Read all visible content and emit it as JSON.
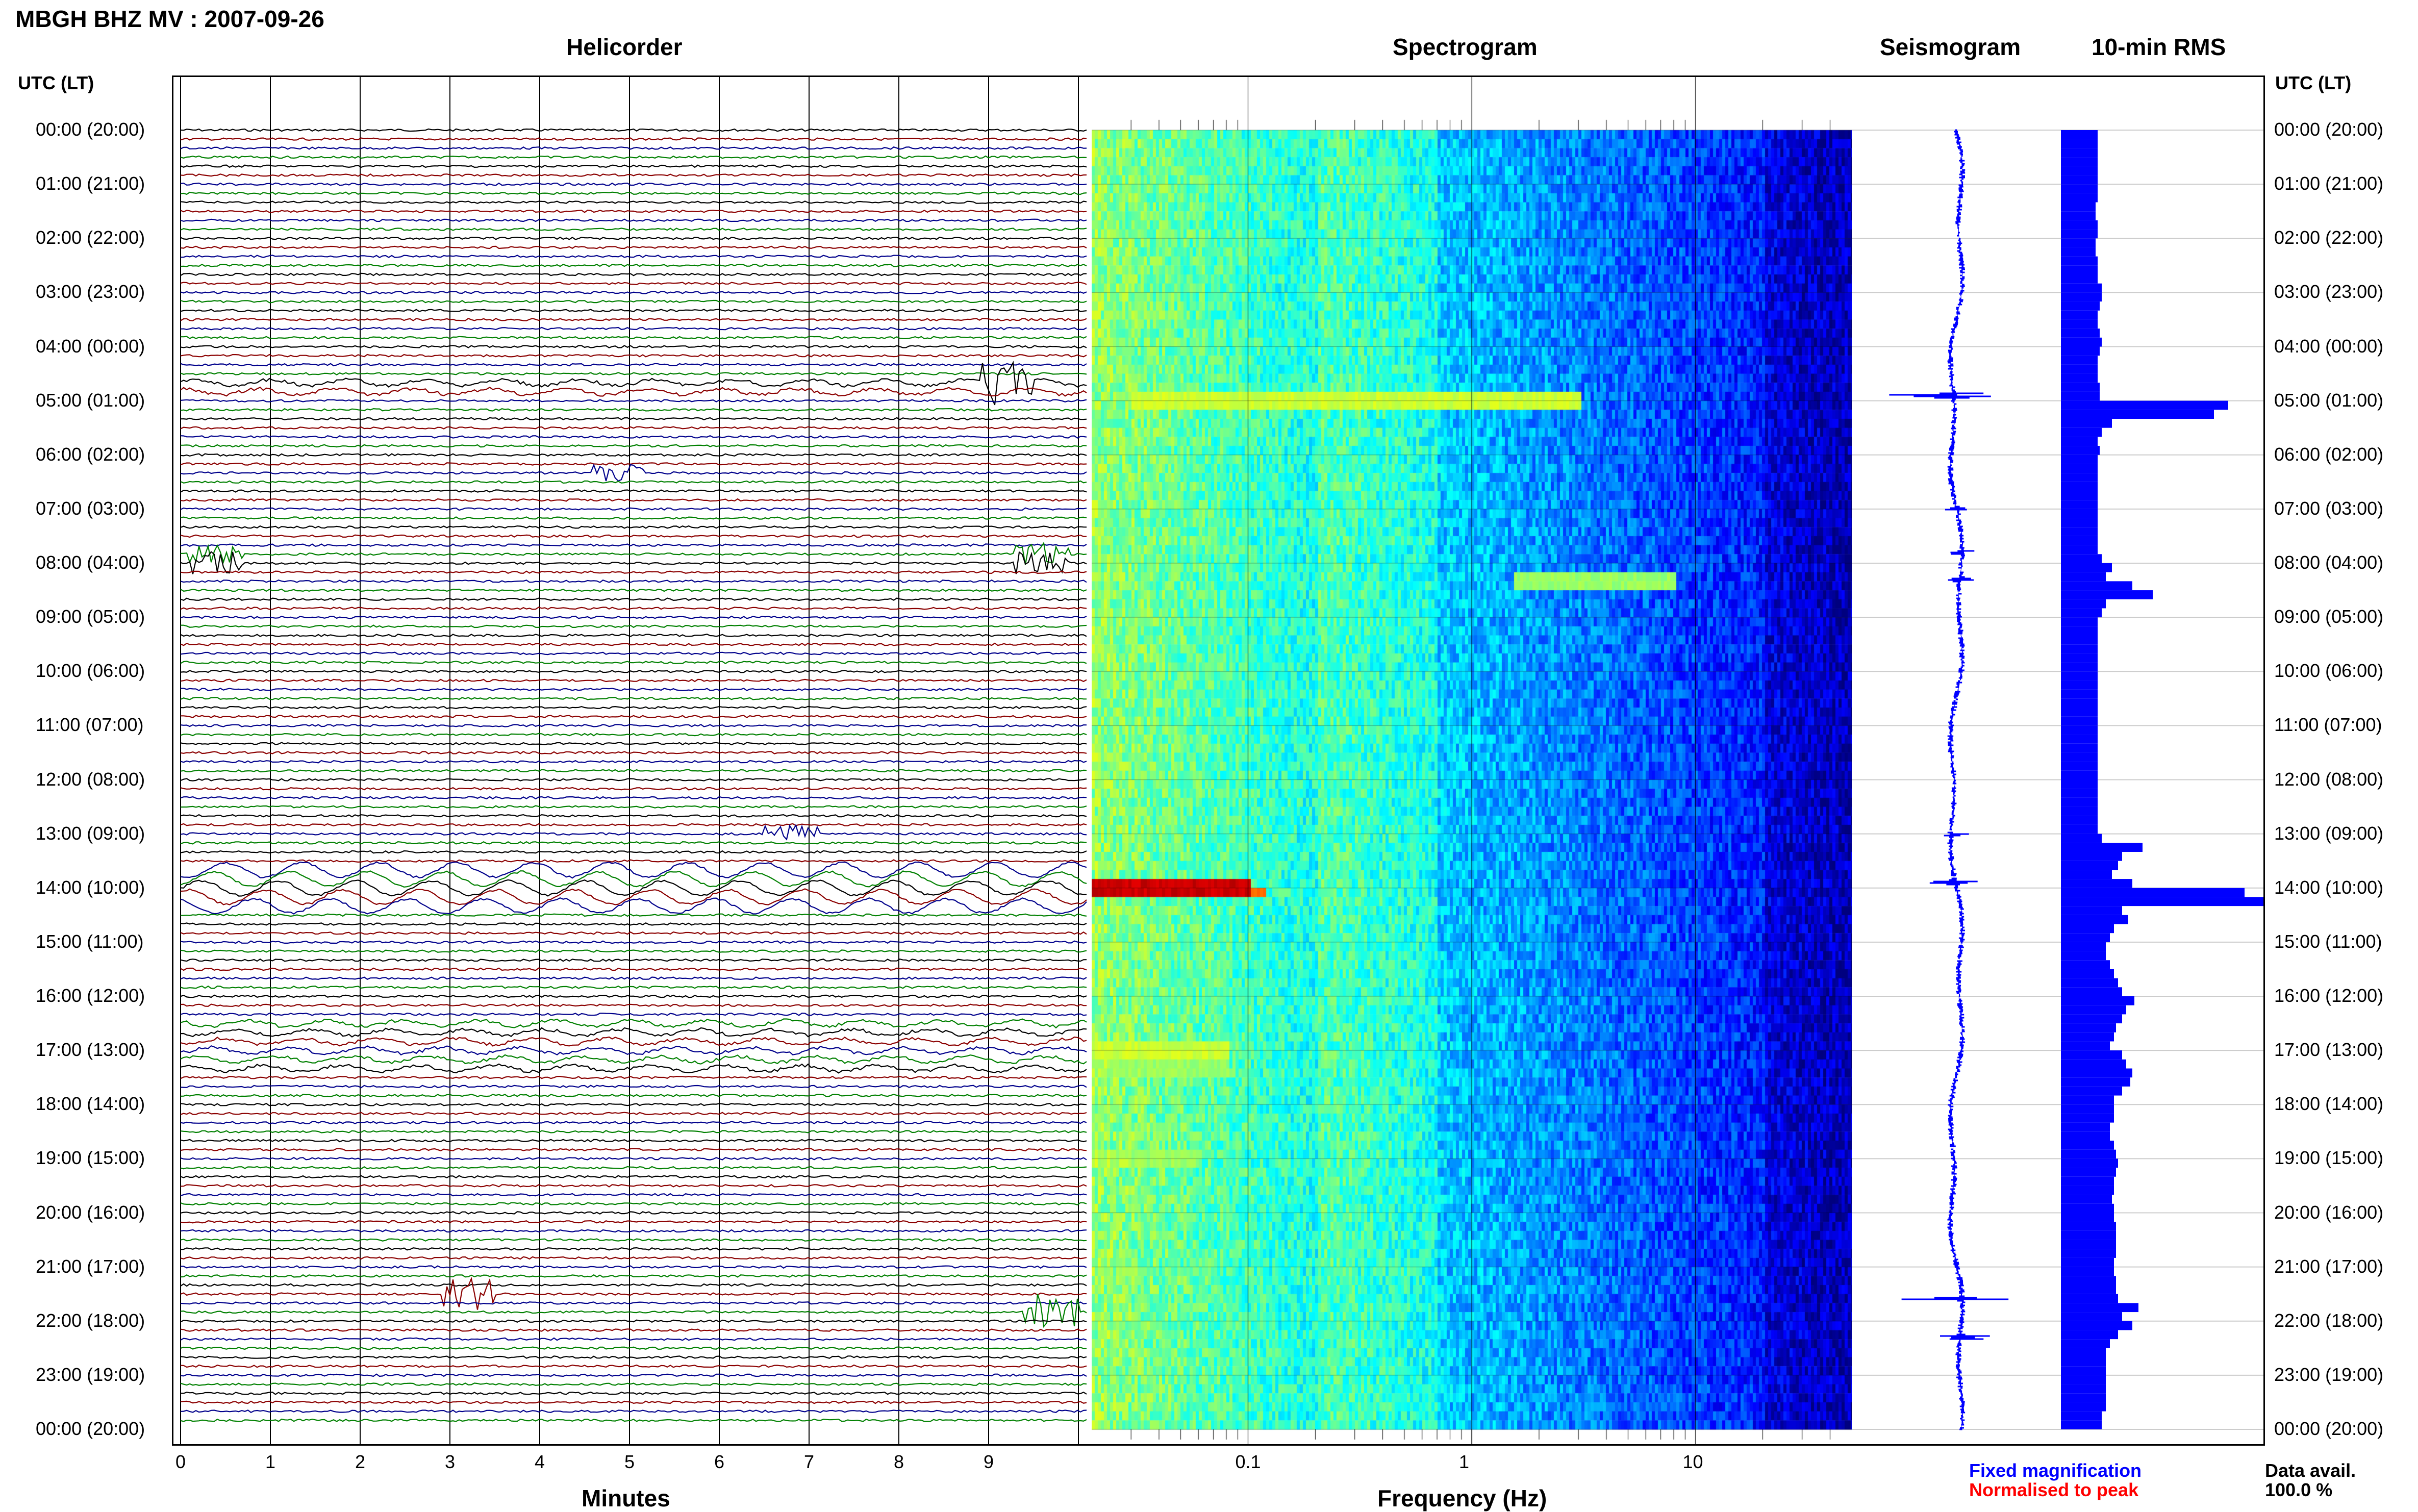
{
  "title": "MBGH BHZ MV : 2007-09-26",
  "headers": {
    "helicorder": "Helicorder",
    "spectrogram": "Spectrogram",
    "seismogram": "Seismogram",
    "rms": "10-min RMS"
  },
  "axis": {
    "time_label_left": "UTC (LT)",
    "time_label_right": "UTC (LT)",
    "minutes_label": "Minutes",
    "frequency_label": "Frequency (Hz)"
  },
  "time_ticks": [
    "00:00 (20:00)",
    "01:00 (21:00)",
    "02:00 (22:00)",
    "03:00 (23:00)",
    "04:00 (00:00)",
    "05:00 (01:00)",
    "06:00 (02:00)",
    "07:00 (03:00)",
    "08:00 (04:00)",
    "09:00 (05:00)",
    "10:00 (06:00)",
    "11:00 (07:00)",
    "12:00 (08:00)",
    "13:00 (09:00)",
    "14:00 (10:00)",
    "15:00 (11:00)",
    "16:00 (12:00)",
    "17:00 (13:00)",
    "18:00 (14:00)",
    "19:00 (15:00)",
    "20:00 (16:00)",
    "21:00 (17:00)",
    "22:00 (18:00)",
    "23:00 (19:00)",
    "00:00 (20:00)"
  ],
  "minute_ticks": [
    "0",
    "1",
    "2",
    "3",
    "4",
    "5",
    "6",
    "7",
    "8",
    "9"
  ],
  "freq_ticks": [
    "0.1",
    "1",
    "10"
  ],
  "legend": {
    "fixed": "Fixed magnification",
    "normalised": "Normalised to peak",
    "fixed_color": "#0000ff",
    "normalised_color": "#ff0000"
  },
  "availability": {
    "label": "Data avail.",
    "value": "100.0 %"
  },
  "colors": {
    "trace_cycle": [
      "#000000",
      "#8b0000",
      "#00008b",
      "#008000"
    ],
    "rms_bar": "#0000ff",
    "seismogram": "#0000ff"
  },
  "chart_data": [
    {
      "type": "line",
      "name": "helicorder",
      "xlabel": "Minutes",
      "xlim": [
        0,
        10
      ],
      "rows_per_hour": 6,
      "events": [
        {
          "hour": 4.7,
          "minute": 9.2,
          "amplitude": 0.9,
          "kind": "burst"
        },
        {
          "hour": 6.3,
          "minute": 4.9,
          "amplitude": 0.4,
          "kind": "burst"
        },
        {
          "hour": 7.9,
          "minute": 0.4,
          "amplitude": 0.5,
          "kind": "burst"
        },
        {
          "hour": 7.9,
          "minute": 9.6,
          "amplitude": 0.5,
          "kind": "burst"
        },
        {
          "hour": 13.0,
          "minute": 6.8,
          "amplitude": 0.4,
          "kind": "burst"
        },
        {
          "hour": 21.5,
          "minute": 3.2,
          "amplitude": 0.7,
          "kind": "burst"
        },
        {
          "hour": 21.8,
          "minute": 9.7,
          "amplitude": 0.8,
          "kind": "burst"
        }
      ]
    },
    {
      "type": "heatmap",
      "name": "spectrogram",
      "xlabel": "Frequency (Hz)",
      "xscale": "log",
      "xlim": [
        0.02,
        50
      ],
      "x_ticks": [
        0.1,
        1,
        10
      ],
      "colormap": "jet"
    },
    {
      "type": "line",
      "name": "seismogram",
      "ylim_hours": [
        0,
        24
      ],
      "spikes": [
        {
          "hour": 4.9,
          "amplitude": 0.8
        },
        {
          "hour": 7.0,
          "amplitude": 0.15
        },
        {
          "hour": 7.8,
          "amplitude": 0.25
        },
        {
          "hour": 8.3,
          "amplitude": 0.2
        },
        {
          "hour": 13.0,
          "amplitude": 0.2
        },
        {
          "hour": 13.9,
          "amplitude": 0.3
        },
        {
          "hour": 21.6,
          "amplitude": 0.6
        },
        {
          "hour": 22.3,
          "amplitude": 0.55
        }
      ]
    },
    {
      "type": "bar",
      "name": "rms",
      "orientation": "horizontal",
      "interval_minutes": 10,
      "values": [
        0.18,
        0.18,
        0.18,
        0.18,
        0.18,
        0.18,
        0.18,
        0.18,
        0.17,
        0.17,
        0.18,
        0.18,
        0.17,
        0.17,
        0.18,
        0.18,
        0.18,
        0.2,
        0.2,
        0.19,
        0.18,
        0.18,
        0.19,
        0.2,
        0.19,
        0.18,
        0.18,
        0.18,
        0.19,
        0.19,
        0.82,
        0.75,
        0.25,
        0.2,
        0.18,
        0.19,
        0.18,
        0.18,
        0.18,
        0.18,
        0.18,
        0.18,
        0.18,
        0.18,
        0.18,
        0.18,
        0.18,
        0.2,
        0.25,
        0.22,
        0.35,
        0.45,
        0.22,
        0.2,
        0.18,
        0.18,
        0.18,
        0.18,
        0.18,
        0.18,
        0.18,
        0.18,
        0.18,
        0.18,
        0.18,
        0.18,
        0.18,
        0.18,
        0.18,
        0.18,
        0.18,
        0.18,
        0.18,
        0.18,
        0.18,
        0.18,
        0.18,
        0.18,
        0.2,
        0.4,
        0.3,
        0.28,
        0.25,
        0.35,
        0.9,
        1.0,
        0.3,
        0.33,
        0.26,
        0.24,
        0.22,
        0.22,
        0.24,
        0.26,
        0.28,
        0.3,
        0.36,
        0.32,
        0.3,
        0.27,
        0.26,
        0.24,
        0.3,
        0.32,
        0.35,
        0.34,
        0.3,
        0.26,
        0.26,
        0.26,
        0.24,
        0.24,
        0.26,
        0.27,
        0.28,
        0.27,
        0.26,
        0.26,
        0.25,
        0.26,
        0.26,
        0.27,
        0.27,
        0.27,
        0.27,
        0.26,
        0.26,
        0.27,
        0.27,
        0.28,
        0.38,
        0.3,
        0.35,
        0.28,
        0.24,
        0.22,
        0.22,
        0.22,
        0.22,
        0.22,
        0.22,
        0.22,
        0.2,
        0.2
      ]
    }
  ]
}
